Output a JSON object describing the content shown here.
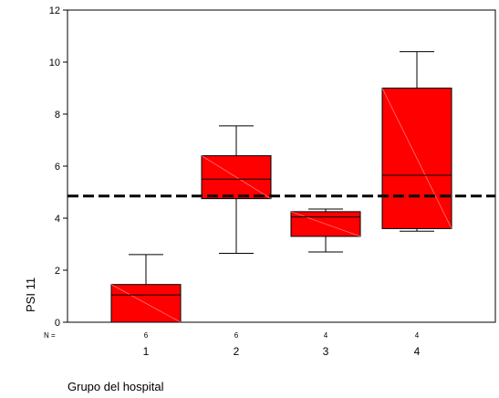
{
  "chart_data": {
    "type": "boxplot",
    "xlabel": "Grupo del hospital",
    "ylabel": "PSI 11",
    "ylim": [
      0,
      12
    ],
    "yticks": [
      0,
      2,
      4,
      6,
      8,
      10,
      12
    ],
    "n_label": "N =",
    "categories": [
      "1",
      "2",
      "3",
      "4"
    ],
    "n_values": [
      "6",
      "6",
      "4",
      "4"
    ],
    "boxes": [
      {
        "category": "1",
        "n": 6,
        "min": 0,
        "q1": 0,
        "median": 1.05,
        "q3": 1.45,
        "max": 2.6
      },
      {
        "category": "2",
        "n": 6,
        "min": 2.65,
        "q1": 4.75,
        "median": 5.5,
        "q3": 6.4,
        "max": 7.55
      },
      {
        "category": "3",
        "n": 4,
        "min": 2.7,
        "q1": 3.3,
        "median": 4.05,
        "q3": 4.25,
        "max": 4.35
      },
      {
        "category": "4",
        "n": 4,
        "min": 3.5,
        "q1": 3.6,
        "median": 5.65,
        "q3": 9.0,
        "max": 10.4
      }
    ],
    "reference_line": {
      "y": 4.85,
      "style": "dashed",
      "color": "#000000"
    },
    "box_color": "#ff0000",
    "grid": false
  }
}
